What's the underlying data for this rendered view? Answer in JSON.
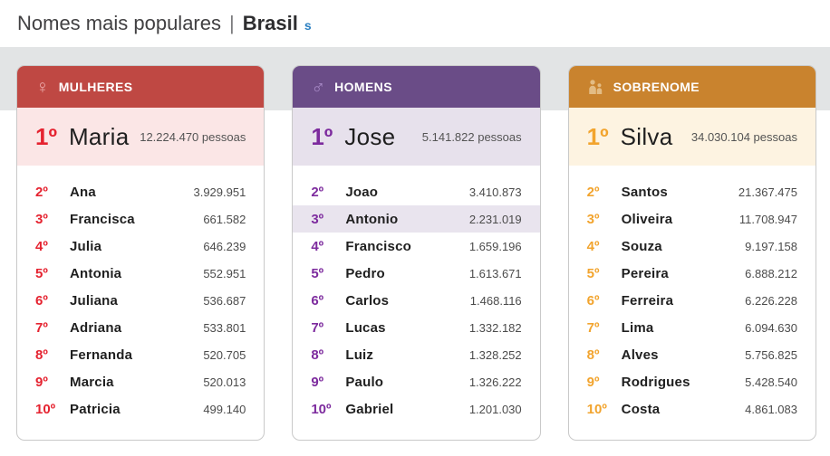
{
  "page": {
    "title": {
      "main": "Nomes mais populares",
      "separator": "|",
      "highlight": "Brasil",
      "link_fragment": "s"
    },
    "band_color": "#e2e4e5"
  },
  "cards": [
    {
      "id": "mulheres",
      "header_label": "MULHERES",
      "icon": "female-icon",
      "icon_glyph": "♀",
      "colors": {
        "header_bg": "#bf4843",
        "accent": "#e52330",
        "band_bg": "#fbe6e6",
        "icon": "#eba8a8",
        "highlight": "#f6eaea"
      },
      "top": {
        "rank": "1º",
        "name": "Maria",
        "value": "12.224.470 pessoas"
      },
      "rows": [
        {
          "rank": "2º",
          "name": "Ana",
          "value": "3.929.951"
        },
        {
          "rank": "3º",
          "name": "Francisca",
          "value": "661.582"
        },
        {
          "rank": "4º",
          "name": "Julia",
          "value": "646.239"
        },
        {
          "rank": "5º",
          "name": "Antonia",
          "value": "552.951"
        },
        {
          "rank": "6º",
          "name": "Juliana",
          "value": "536.687"
        },
        {
          "rank": "7º",
          "name": "Adriana",
          "value": "533.801"
        },
        {
          "rank": "8º",
          "name": "Fernanda",
          "value": "520.705"
        },
        {
          "rank": "9º",
          "name": "Marcia",
          "value": "520.013"
        },
        {
          "rank": "10º",
          "name": "Patricia",
          "value": "499.140"
        }
      ]
    },
    {
      "id": "homens",
      "header_label": "HOMENS",
      "icon": "male-icon",
      "icon_glyph": "♂",
      "colors": {
        "header_bg": "#6a4c87",
        "accent": "#7d2b9e",
        "band_bg": "#e7e1ec",
        "icon": "#a98bc8",
        "highlight": "#e9e4ee"
      },
      "top": {
        "rank": "1º",
        "name": "Jose",
        "value": "5.141.822 pessoas"
      },
      "rows": [
        {
          "rank": "2º",
          "name": "Joao",
          "value": "3.410.873"
        },
        {
          "rank": "3º",
          "name": "Antonio",
          "value": "2.231.019",
          "highlighted": true
        },
        {
          "rank": "4º",
          "name": "Francisco",
          "value": "1.659.196"
        },
        {
          "rank": "5º",
          "name": "Pedro",
          "value": "1.613.671"
        },
        {
          "rank": "6º",
          "name": "Carlos",
          "value": "1.468.116"
        },
        {
          "rank": "7º",
          "name": "Lucas",
          "value": "1.332.182"
        },
        {
          "rank": "8º",
          "name": "Luiz",
          "value": "1.328.252"
        },
        {
          "rank": "9º",
          "name": "Paulo",
          "value": "1.326.222"
        },
        {
          "rank": "10º",
          "name": "Gabriel",
          "value": "1.201.030"
        }
      ]
    },
    {
      "id": "sobrenome",
      "header_label": "SOBRENOME",
      "icon": "family-icon",
      "icon_glyph": "",
      "colors": {
        "header_bg": "#c9832e",
        "accent": "#f2a42e",
        "band_bg": "#fdf3e1",
        "icon": "#e3bc84",
        "highlight": "#faf0de"
      },
      "top": {
        "rank": "1º",
        "name": "Silva",
        "value": "34.030.104 pessoas"
      },
      "rows": [
        {
          "rank": "2º",
          "name": "Santos",
          "value": "21.367.475"
        },
        {
          "rank": "3º",
          "name": "Oliveira",
          "value": "11.708.947"
        },
        {
          "rank": "4º",
          "name": "Souza",
          "value": "9.197.158"
        },
        {
          "rank": "5º",
          "name": "Pereira",
          "value": "6.888.212"
        },
        {
          "rank": "6º",
          "name": "Ferreira",
          "value": "6.226.228"
        },
        {
          "rank": "7º",
          "name": "Lima",
          "value": "6.094.630"
        },
        {
          "rank": "8º",
          "name": "Alves",
          "value": "5.756.825"
        },
        {
          "rank": "9º",
          "name": "Rodrigues",
          "value": "5.428.540"
        },
        {
          "rank": "10º",
          "name": "Costa",
          "value": "4.861.083"
        }
      ]
    }
  ]
}
